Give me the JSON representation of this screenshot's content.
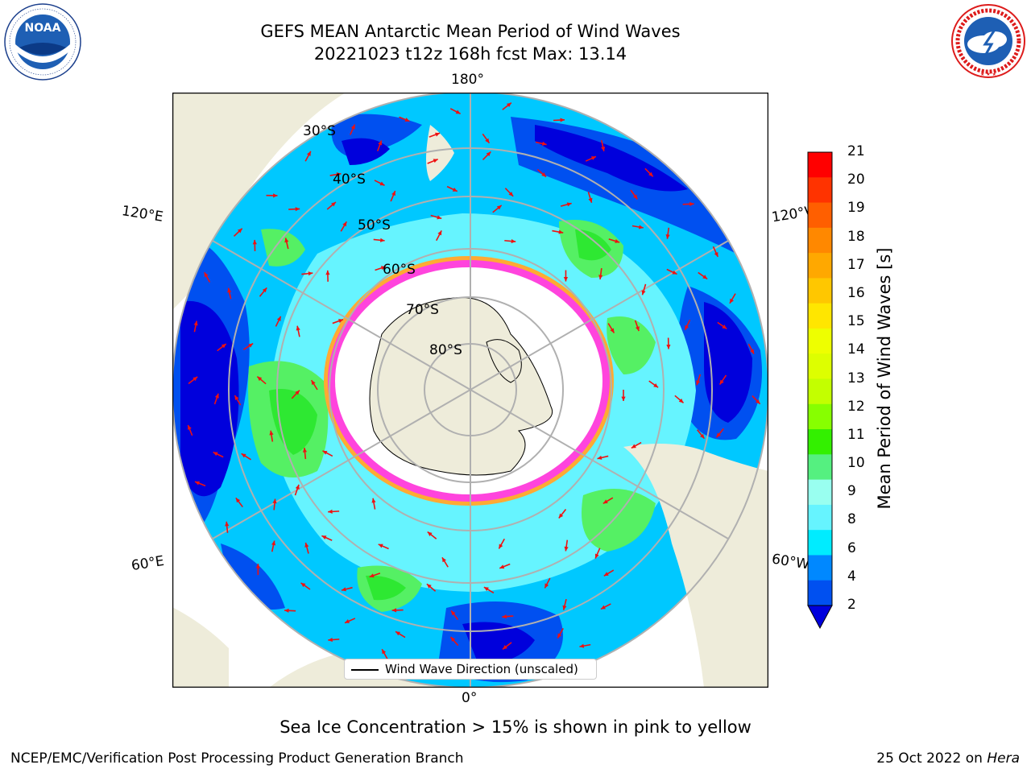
{
  "header": {
    "title_line1": "GEFS MEAN Antarctic Mean Period of Wind Waves",
    "title_line2": "20221023 t12z 168h fcst   Max: 13.14"
  },
  "logos": {
    "left": "noara-logo",
    "left_text": "NOAA",
    "left_ring_text": "NATIONAL OCEANIC AND ATMOSPHERIC ADMINISTRATION · U.S. DEPARTMENT OF COMMERCE",
    "right": "national-weather-service-logo",
    "right_ring_text": "NATIONAL WEATHER SERVICE"
  },
  "map": {
    "projection": "south-polar-stereographic",
    "longitude_labels": {
      "top": "180°",
      "bottom": "0°",
      "upper_left": "120°E",
      "lower_left": "60°E",
      "upper_right": "120°W",
      "lower_right": "60°W"
    },
    "latitude_labels": [
      "30°S",
      "40°S",
      "50°S",
      "60°S",
      "70°S",
      "80°S"
    ],
    "colors": {
      "land": "#eeecda",
      "ocean_zone_1": "#0000dc",
      "ocean_zone_2": "#0050f0",
      "ocean_zone_3": "#00c8ff",
      "ocean_zone_4": "#66f4ff",
      "ocean_zone_5": "#55f064",
      "ocean_zone_6": "#2ee832",
      "sea_ice": "#ff44dd",
      "sea_ice_edge": "#ffaa33",
      "arrows": "#ee1111",
      "gridlines": "#b0b0b0"
    },
    "legend_label": "Wind Wave Direction (unscaled)"
  },
  "colorbar": {
    "title": "Mean Period of Wind Waves [s]",
    "ticks": [
      "21",
      "20",
      "19",
      "18",
      "17",
      "16",
      "15",
      "14",
      "13",
      "12",
      "11",
      "10",
      "9",
      "8",
      "6",
      "4",
      "2"
    ],
    "colors": [
      "#ff0000",
      "#ff3300",
      "#ff5f00",
      "#ff8800",
      "#ffa800",
      "#ffc700",
      "#ffe600",
      "#eeff00",
      "#ddff00",
      "#c3ff00",
      "#87ff00",
      "#33f000",
      "#55f080",
      "#99fff0",
      "#66f4ff",
      "#00ecff",
      "#0088ff",
      "#0050f0"
    ]
  },
  "footer": {
    "note": "Sea Ice Concentration > 15% is shown in pink to yellow",
    "credit_left": "NCEP/EMC/Verification Post Processing Product Generation Branch",
    "credit_right_prefix": "25 Oct 2022 on ",
    "credit_right_machine": "Hera"
  }
}
